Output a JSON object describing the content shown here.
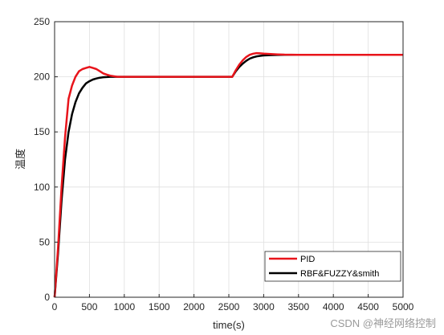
{
  "chart_data": {
    "type": "line",
    "title": "",
    "xlabel": "time(s)",
    "ylabel": "温度",
    "xlim": [
      0,
      5000
    ],
    "ylim": [
      0,
      250
    ],
    "xticks": [
      0,
      500,
      1000,
      1500,
      2000,
      2500,
      3000,
      3500,
      4000,
      4500,
      5000
    ],
    "yticks": [
      0,
      50,
      100,
      150,
      200,
      250
    ],
    "grid": true,
    "legend_position": "bottom-right",
    "series": [
      {
        "name": "PID",
        "color": "#e8141b",
        "x": [
          0,
          50,
          100,
          150,
          200,
          250,
          300,
          350,
          400,
          450,
          500,
          550,
          600,
          650,
          700,
          750,
          800,
          900,
          1000,
          1200,
          1500,
          2000,
          2500,
          2550,
          2600,
          2650,
          2700,
          2750,
          2800,
          2850,
          2900,
          2950,
          3000,
          3100,
          3200,
          3300,
          3500,
          4000,
          4500,
          5000
        ],
        "y": [
          0,
          45,
          100,
          145,
          180,
          192,
          200,
          205,
          207,
          208,
          209,
          208,
          207,
          205,
          203,
          202,
          201,
          200,
          200,
          200,
          200,
          200,
          200,
          200,
          206,
          211,
          215,
          218,
          220,
          221,
          221.5,
          221.3,
          221,
          220.6,
          220.3,
          220.1,
          220,
          220,
          220,
          220
        ]
      },
      {
        "name": "RBF&FUZZY&smith",
        "color": "#000000",
        "x": [
          0,
          50,
          100,
          150,
          200,
          250,
          300,
          350,
          400,
          450,
          500,
          550,
          600,
          650,
          700,
          750,
          800,
          900,
          1000,
          1200,
          1500,
          2000,
          2500,
          2550,
          2600,
          2650,
          2700,
          2750,
          2800,
          2850,
          2900,
          2950,
          3000,
          3100,
          3200,
          3300,
          3500,
          4000,
          4500,
          5000
        ],
        "y": [
          0,
          40,
          88,
          125,
          150,
          166,
          177,
          185,
          190,
          194,
          196,
          197.5,
          198.5,
          199.2,
          199.6,
          199.8,
          200,
          200,
          200,
          200,
          200,
          200,
          200,
          200,
          205,
          209,
          212,
          214.5,
          216.5,
          217.7,
          218.5,
          219,
          219.4,
          219.7,
          219.85,
          219.95,
          220,
          220,
          220,
          220
        ]
      }
    ]
  },
  "watermark": "CSDN @神经网络控制"
}
